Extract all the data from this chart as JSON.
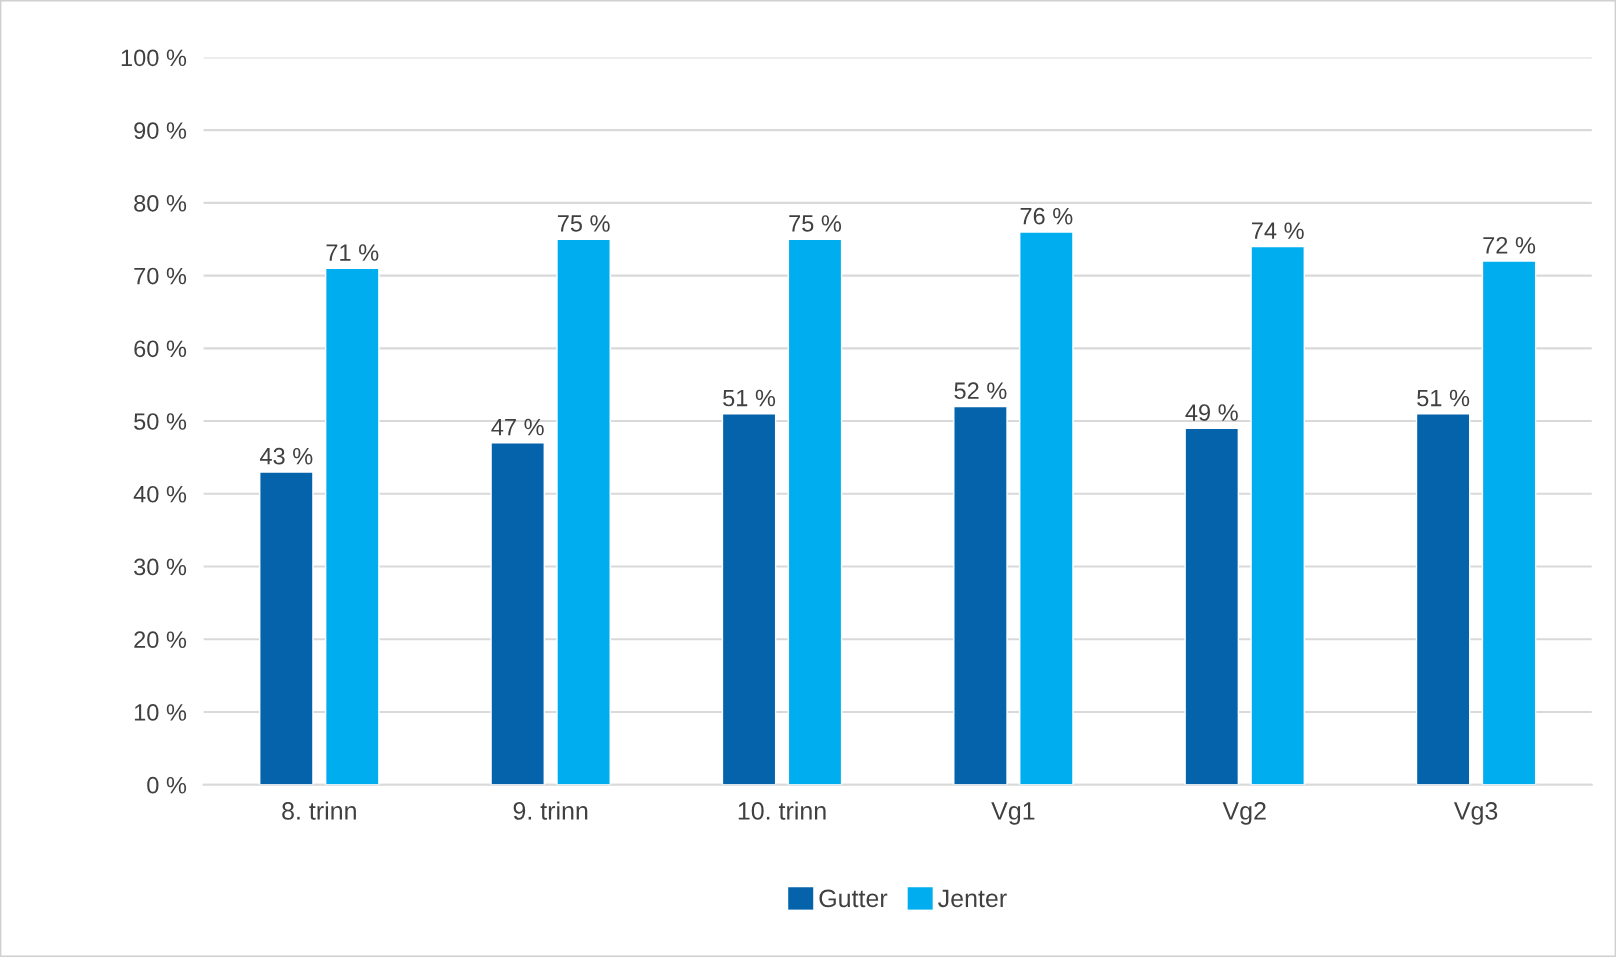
{
  "chart_data": {
    "type": "bar",
    "categories": [
      "8. trinn",
      "9. trinn",
      "10. trinn",
      "Vg1",
      "Vg2",
      "Vg3"
    ],
    "series": [
      {
        "name": "Gutter",
        "color": "#0563ab",
        "values": [
          43,
          47,
          51,
          52,
          49,
          51
        ],
        "value_labels": [
          "43 %",
          "47 %",
          "51 %",
          "52 %",
          "49 %",
          "51 %"
        ]
      },
      {
        "name": "Jenter",
        "color": "#00adef",
        "values": [
          71,
          75,
          75,
          76,
          74,
          72
        ],
        "value_labels": [
          "71 %",
          "75 %",
          "75 %",
          "76 %",
          "74 %",
          "72 %"
        ]
      }
    ],
    "ylim": [
      0,
      100
    ],
    "yticks": [
      {
        "value": 0,
        "label": "0 %"
      },
      {
        "value": 10,
        "label": "10 %"
      },
      {
        "value": 20,
        "label": "20 %"
      },
      {
        "value": 30,
        "label": "30 %"
      },
      {
        "value": 40,
        "label": "40 %"
      },
      {
        "value": 50,
        "label": "50 %"
      },
      {
        "value": 60,
        "label": "60 %"
      },
      {
        "value": 70,
        "label": "70 %"
      },
      {
        "value": 80,
        "label": "80 %"
      },
      {
        "value": 90,
        "label": "90 %"
      },
      {
        "value": 100,
        "label": "100 %"
      }
    ],
    "grid": "y",
    "legend": "bottom"
  }
}
